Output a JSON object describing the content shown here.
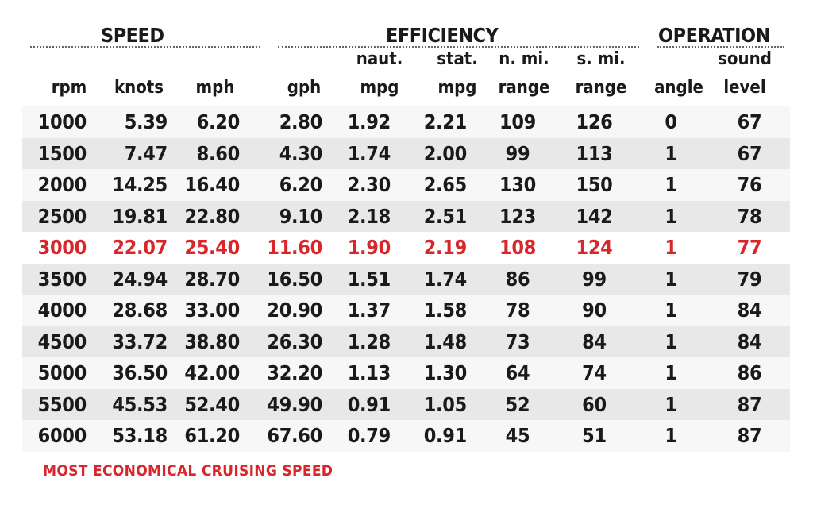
{
  "groups": {
    "speed": "SPEED",
    "efficiency": "EFFICIENCY",
    "operation": "OPERATION"
  },
  "headers": {
    "rpm": [
      "",
      "rpm"
    ],
    "knots": [
      "",
      "knots"
    ],
    "mph": [
      "",
      "mph"
    ],
    "gph": [
      "",
      "gph"
    ],
    "naut_mpg": [
      "naut.",
      "mpg"
    ],
    "stat_mpg": [
      "stat.",
      "mpg"
    ],
    "nmi_range": [
      "n. mi.",
      "range"
    ],
    "smi_range": [
      "s. mi.",
      "range"
    ],
    "angle": [
      "",
      "angle"
    ],
    "sound": [
      "sound",
      "level"
    ]
  },
  "rows": [
    [
      "1000",
      "5.39",
      "6.20",
      "2.80",
      "1.92",
      "2.21",
      "109",
      "126",
      "0",
      "67"
    ],
    [
      "1500",
      "7.47",
      "8.60",
      "4.30",
      "1.74",
      "2.00",
      "99",
      "113",
      "1",
      "67"
    ],
    [
      "2000",
      "14.25",
      "16.40",
      "6.20",
      "2.30",
      "2.65",
      "130",
      "150",
      "1",
      "76"
    ],
    [
      "2500",
      "19.81",
      "22.80",
      "9.10",
      "2.18",
      "2.51",
      "123",
      "142",
      "1",
      "78"
    ],
    [
      "3000",
      "22.07",
      "25.40",
      "11.60",
      "1.90",
      "2.19",
      "108",
      "124",
      "1",
      "77"
    ],
    [
      "3500",
      "24.94",
      "28.70",
      "16.50",
      "1.51",
      "1.74",
      "86",
      "99",
      "1",
      "79"
    ],
    [
      "4000",
      "28.68",
      "33.00",
      "20.90",
      "1.37",
      "1.58",
      "78",
      "90",
      "1",
      "84"
    ],
    [
      "4500",
      "33.72",
      "38.80",
      "26.30",
      "1.28",
      "1.48",
      "73",
      "84",
      "1",
      "84"
    ],
    [
      "5000",
      "36.50",
      "42.00",
      "32.20",
      "1.13",
      "1.30",
      "64",
      "74",
      "1",
      "86"
    ],
    [
      "5500",
      "45.53",
      "52.40",
      "49.90",
      "0.91",
      "1.05",
      "52",
      "60",
      "1",
      "87"
    ],
    [
      "6000",
      "53.18",
      "61.20",
      "67.60",
      "0.79",
      "0.91",
      "45",
      "51",
      "1",
      "87"
    ]
  ],
  "highlight_row": 4,
  "highlight_color": "#d9262b",
  "footnote": "MOST ECONOMICAL CRUISING SPEED"
}
